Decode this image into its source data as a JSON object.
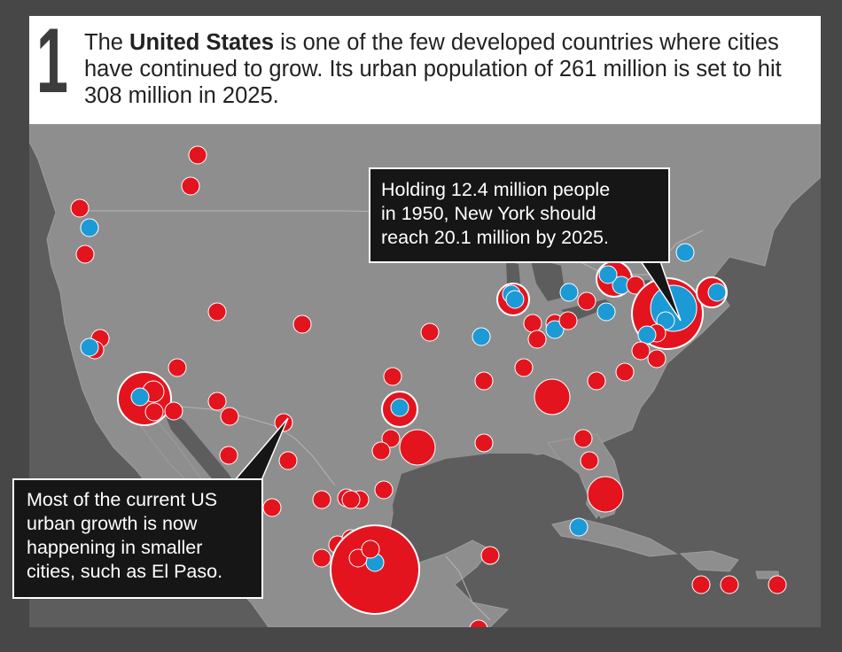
{
  "header": {
    "number": "1",
    "headline_pre": "The ",
    "headline_bold": "United States",
    "headline_post": " is one of the few developed countries where cities have continued to grow. Its urban population of 261 million is set to hit 308 million in 2025."
  },
  "callouts": {
    "new_york": {
      "lines": [
        "Holding 12.4 million people",
        "in 1950, New York should",
        "reach 20.1 million by 2025."
      ]
    },
    "el_paso": {
      "lines": [
        "Most of the current US",
        "urban growth is now",
        "happening in smaller",
        "cities, such as El Paso."
      ]
    }
  },
  "colors": {
    "land": "#8e8e8e",
    "water": "#5d5d5d",
    "growth_2025": "#e3141e",
    "population_1950": "#1c9ad6",
    "callout_bg": "#161616",
    "header_bg": "#ffffff"
  }
}
